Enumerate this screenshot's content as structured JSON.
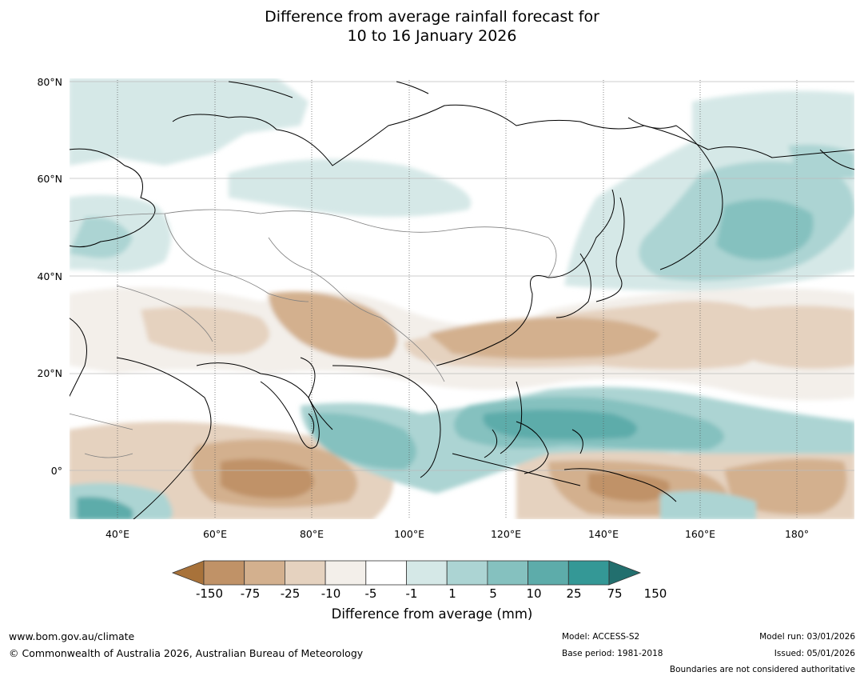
{
  "title": {
    "line1": "Difference from average rainfall forecast for",
    "line2": "10 to 16 January 2026"
  },
  "map": {
    "lat_labels": [
      "80°N",
      "60°N",
      "40°N",
      "20°N",
      "0°"
    ],
    "lon_labels": [
      "40°E",
      "60°E",
      "80°E",
      "100°E",
      "120°E",
      "140°E",
      "160°E",
      "180°"
    ]
  },
  "colorbar": {
    "ticks": [
      "-150",
      "-75",
      "-25",
      "-10",
      "-5",
      "-1",
      "1",
      "5",
      "10",
      "25",
      "75",
      "150"
    ],
    "colors": [
      "#a8723a",
      "#c09267",
      "#d3b08e",
      "#e5d2bf",
      "#f3efea",
      "#ffffff",
      "#d5e8e7",
      "#acd4d3",
      "#85c1bf",
      "#5dacaa",
      "#349896",
      "#226f6e"
    ],
    "title": "Difference from average (mm)"
  },
  "footer": {
    "website": "www.bom.gov.au/climate",
    "copyright": "© Commonwealth of Australia 2026, Australian Bureau of Meteorology",
    "model": "Model: ACCESS-S2",
    "base_period": "Base period: 1981-2018",
    "model_run": "Model run: 03/01/2026",
    "issued": "Issued: 05/01/2026",
    "disclaimer": "Boundaries are not considered authoritative"
  }
}
